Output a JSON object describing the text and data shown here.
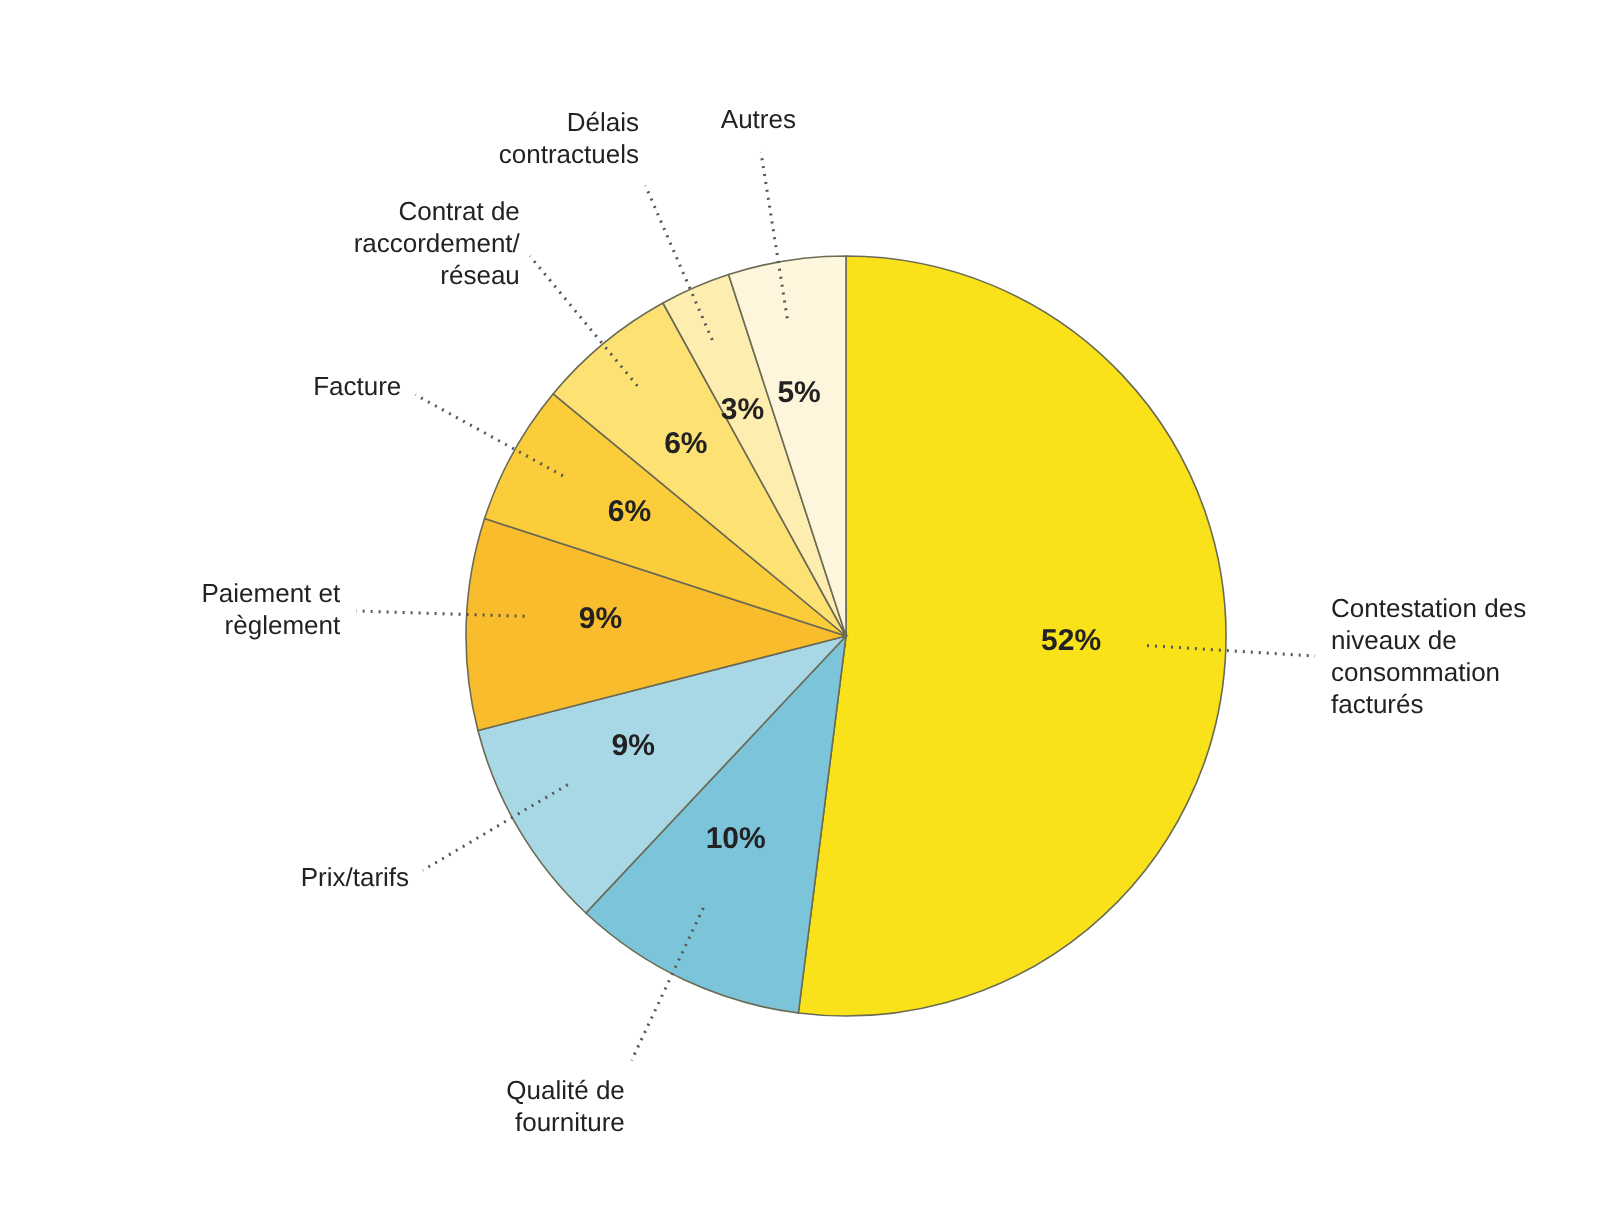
{
  "chart_data": {
    "type": "pie",
    "categories": [
      "Contestation des niveaux de consommation facturés",
      "Qualité de fourniture",
      "Prix/tarifs",
      "Paiement et règlement",
      "Facture",
      "Contrat de raccordement/ réseau",
      "Délais contractuels",
      "Autres"
    ],
    "values": [
      52,
      10,
      9,
      9,
      6,
      6,
      3,
      5
    ],
    "value_labels": [
      "52%",
      "10%",
      "9%",
      "9%",
      "6%",
      "6%",
      "3%",
      "5%"
    ],
    "colors": [
      "#f9e21a",
      "#7cc4d9",
      "#a8d7e6",
      "#f9bc2c",
      "#fbcd3a",
      "#fde173",
      "#fdeeb0",
      "#fdf5dc"
    ],
    "legend": false
  }
}
